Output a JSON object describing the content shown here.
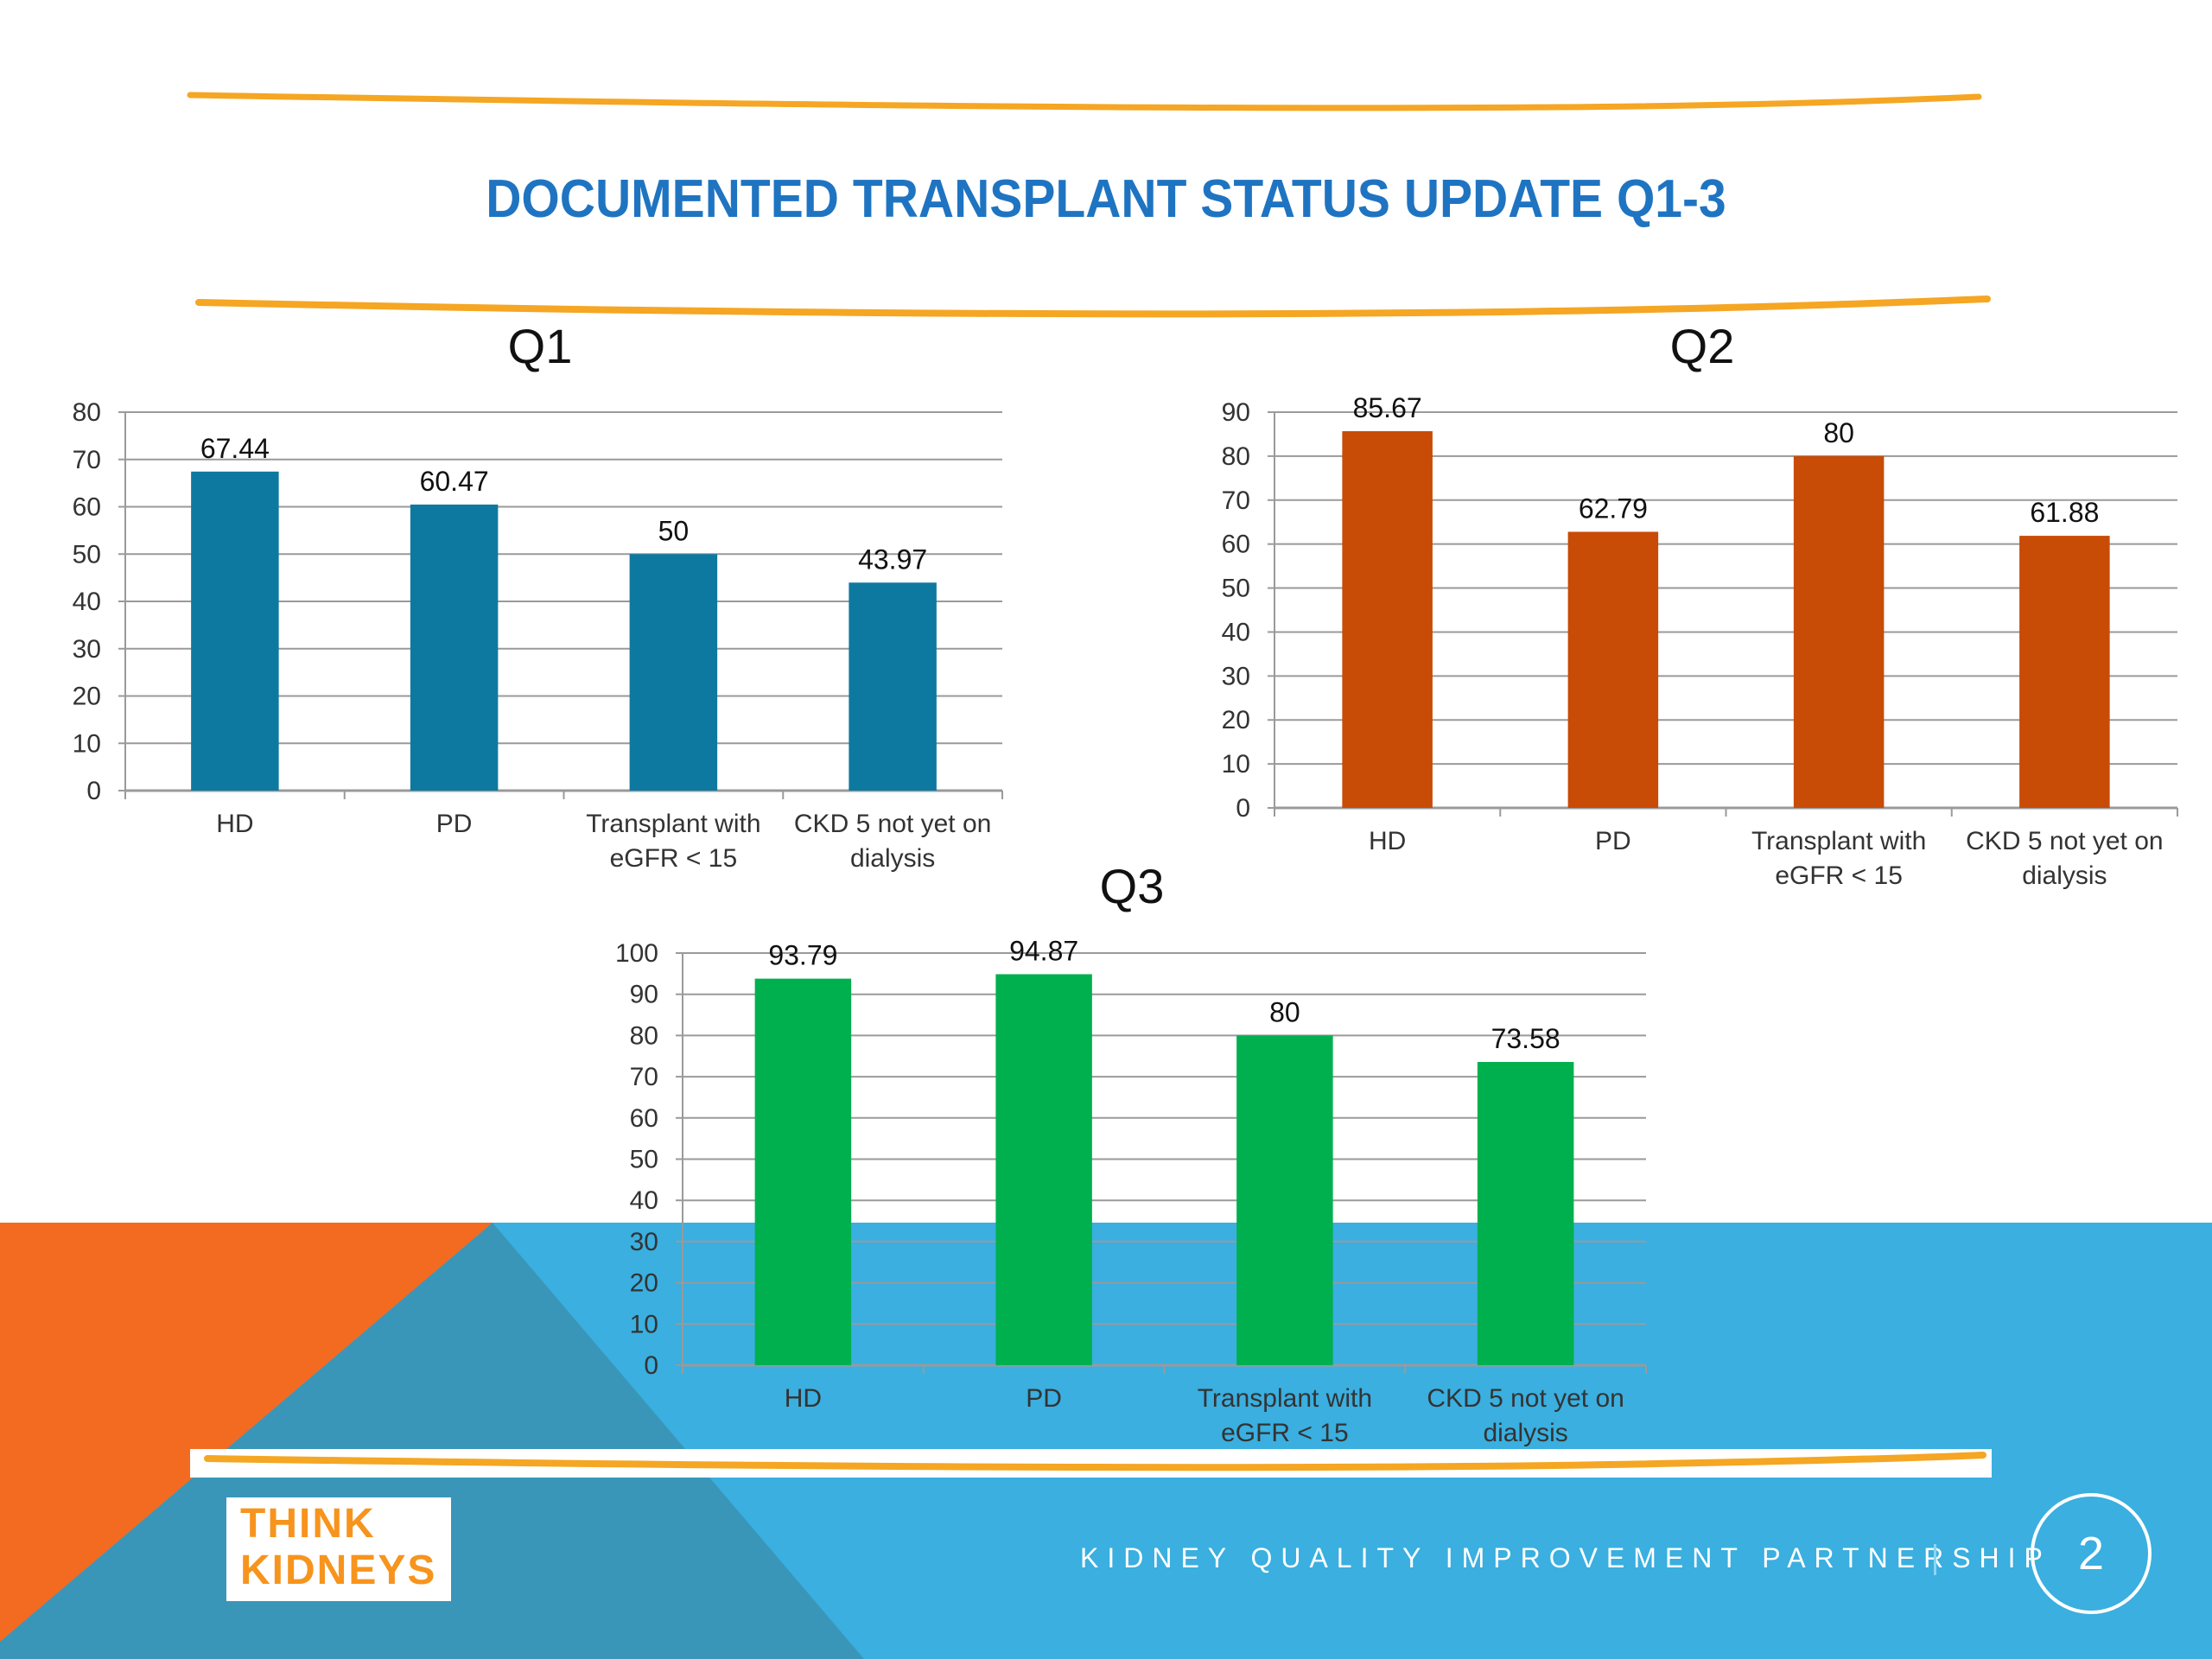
{
  "slide": {
    "title": "DOCUMENTED TRANSPLANT STATUS UPDATE Q1-3",
    "footer_text": "KIDNEY QUALITY IMPROVEMENT PARTNERSHIP",
    "page_number": "2",
    "logo_text_line1": "THINK",
    "logo_text_line2": "KIDNEYS",
    "colors": {
      "title": "#1f74c2",
      "brush": "#f5a623",
      "orange_corner": "#f26b21",
      "blue_band": "#3aafe0",
      "dark_blue_band": "#3a96b8"
    }
  },
  "chart_data": [
    {
      "type": "bar",
      "title": "Q1",
      "categories": [
        "HD",
        "PD",
        "Transplant with eGFR < 15",
        "CKD 5 not yet on dialysis"
      ],
      "category_lines": [
        [
          "HD"
        ],
        [
          "PD"
        ],
        [
          "Transplant with",
          "eGFR < 15"
        ],
        [
          "CKD 5 not yet on",
          "dialysis"
        ]
      ],
      "values": [
        67.44,
        60.47,
        50,
        43.97
      ],
      "value_labels": [
        "67.44",
        "60.47",
        "50",
        "43.97"
      ],
      "ylim": [
        0,
        80
      ],
      "yticks": [
        0,
        10,
        20,
        30,
        40,
        50,
        60,
        70,
        80
      ],
      "grid": true,
      "color": "#0e79a0"
    },
    {
      "type": "bar",
      "title": "Q2",
      "categories": [
        "HD",
        "PD",
        "Transplant with eGFR < 15",
        "CKD 5 not yet on dialysis"
      ],
      "category_lines": [
        [
          "HD"
        ],
        [
          "PD"
        ],
        [
          "Transplant with",
          "eGFR < 15"
        ],
        [
          "CKD 5 not yet on",
          "dialysis"
        ]
      ],
      "values": [
        85.67,
        62.79,
        80,
        61.88
      ],
      "value_labels": [
        "85.67",
        "62.79",
        "80",
        "61.88"
      ],
      "ylim": [
        0,
        90
      ],
      "yticks": [
        0,
        10,
        20,
        30,
        40,
        50,
        60,
        70,
        80,
        90
      ],
      "grid": true,
      "color": "#c84b06"
    },
    {
      "type": "bar",
      "title": "Q3",
      "categories": [
        "HD",
        "PD",
        "Transplant with eGFR < 15",
        "CKD 5 not yet on dialysis"
      ],
      "category_lines": [
        [
          "HD"
        ],
        [
          "PD"
        ],
        [
          "Transplant with",
          "eGFR < 15"
        ],
        [
          "CKD 5 not yet on",
          "dialysis"
        ]
      ],
      "values": [
        93.79,
        94.87,
        80,
        73.58
      ],
      "value_labels": [
        "93.79",
        "94.87",
        "80",
        "73.58"
      ],
      "ylim": [
        0,
        100
      ],
      "yticks": [
        0,
        10,
        20,
        30,
        40,
        50,
        60,
        70,
        80,
        90,
        100
      ],
      "grid": true,
      "color": "#00b04f"
    }
  ]
}
